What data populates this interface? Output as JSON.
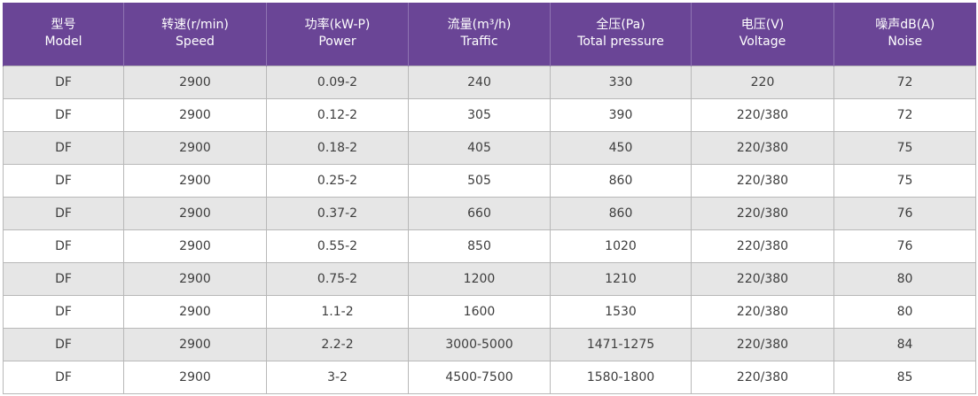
{
  "table": {
    "headers": [
      {
        "cn": "型号",
        "en": "Model"
      },
      {
        "cn": "转速(r/min)",
        "en": "Speed"
      },
      {
        "cn": "功率(kW-P)",
        "en": "Power"
      },
      {
        "cn": "流量(m³/h)",
        "en": "Traffic"
      },
      {
        "cn": "全压(Pa)",
        "en": "Total pressure"
      },
      {
        "cn": "电压(V)",
        "en": "Voltage"
      },
      {
        "cn": "噪声dB(A)",
        "en": "Noise"
      }
    ],
    "rows": [
      [
        "DF",
        "2900",
        "0.09-2",
        "240",
        "330",
        "220",
        "72"
      ],
      [
        "DF",
        "2900",
        "0.12-2",
        "305",
        "390",
        "220/380",
        "72"
      ],
      [
        "DF",
        "2900",
        "0.18-2",
        "405",
        "450",
        "220/380",
        "75"
      ],
      [
        "DF",
        "2900",
        "0.25-2",
        "505",
        "860",
        "220/380",
        "75"
      ],
      [
        "DF",
        "2900",
        "0.37-2",
        "660",
        "860",
        "220/380",
        "76"
      ],
      [
        "DF",
        "2900",
        "0.55-2",
        "850",
        "1020",
        "220/380",
        "76"
      ],
      [
        "DF",
        "2900",
        "0.75-2",
        "1200",
        "1210",
        "220/380",
        "80"
      ],
      [
        "DF",
        "2900",
        "1.1-2",
        "1600",
        "1530",
        "220/380",
        "80"
      ],
      [
        "DF",
        "2900",
        "2.2-2",
        "3000-5000",
        "1471-1275",
        "220/380",
        "84"
      ],
      [
        "DF",
        "2900",
        "3-2",
        "4500-7500",
        "1580-1800",
        "220/380",
        "85"
      ]
    ]
  },
  "colors": {
    "header_bg": "#6a4596",
    "header_text": "#ffffff",
    "row_alt_bg": "#e6e6e6",
    "row_bg": "#ffffff",
    "cell_text": "#3d3d3d",
    "border": "#b8b8b8"
  }
}
